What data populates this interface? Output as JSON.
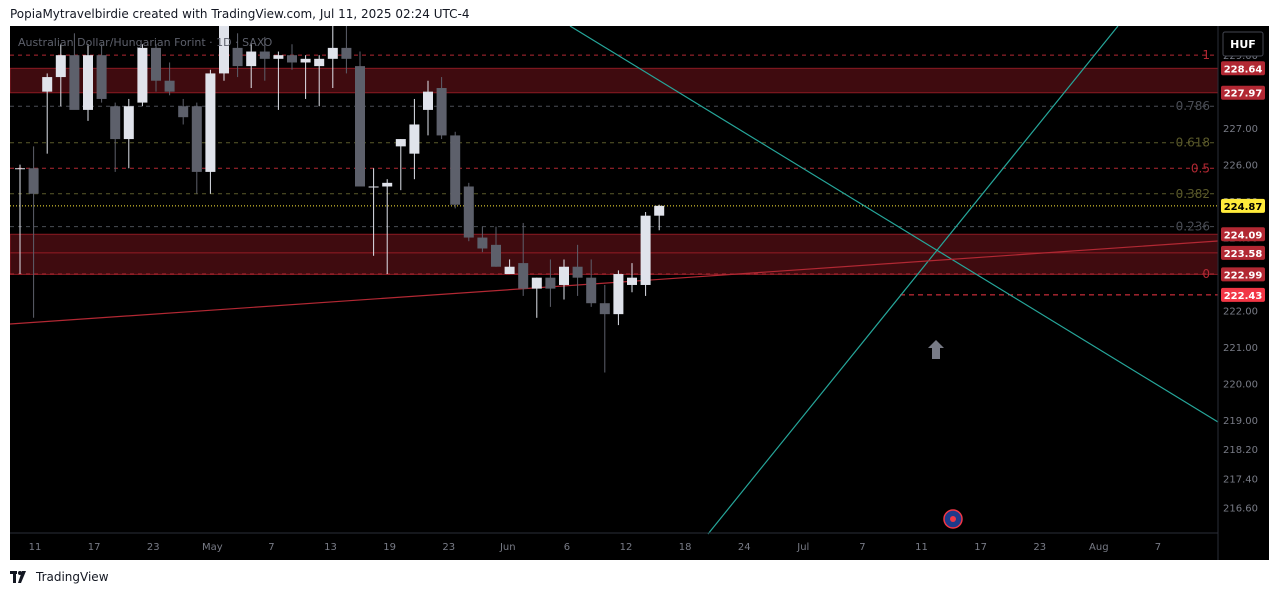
{
  "header": {
    "caption": "PopiaMytravelbirdie created with TradingView.com, Jul 11, 2025 02:24 UTC-4"
  },
  "footer": {
    "brand": "TradingView"
  },
  "symbol": {
    "title": "Australian Dollar/Hungarian Forint · 1D · SAXO"
  },
  "currency_button": {
    "label": "HUF"
  },
  "colors": {
    "background": "#000000",
    "up_candle": "#e0e3eb",
    "down_candle": "#5d606b",
    "zone_fill": "#4a0d12",
    "zone_line": "#8b1a22",
    "trendline_green": "#26a69a",
    "trendline_red": "#b22833",
    "current_price": "#ffeb3b",
    "alert_price": "#f23645",
    "axis_text": "#787b86"
  },
  "chart_data": {
    "type": "candlestick",
    "title": "Australian Dollar/Hungarian Forint · 1D · SAXO",
    "ylim": [
      215.9,
      229.8
    ],
    "y_ticks": [
      "229.00",
      "228.00",
      "227.00",
      "226.00",
      "225.00",
      "224.00",
      "223.00",
      "222.00",
      "221.00",
      "220.00",
      "219.00",
      "218.20",
      "217.40",
      "216.60"
    ],
    "x_labels": [
      "11",
      "17",
      "23",
      "May",
      "7",
      "13",
      "19",
      "23",
      "Jun",
      "6",
      "12",
      "18",
      "24",
      "Jul",
      "7",
      "11",
      "17",
      "23",
      "Aug",
      "7"
    ],
    "candles": [
      {
        "o": 225.9,
        "h": 226.0,
        "l": 223.0,
        "c": 225.9
      },
      {
        "o": 225.9,
        "h": 226.5,
        "l": 221.8,
        "c": 225.2
      },
      {
        "o": 228.0,
        "h": 228.5,
        "l": 226.3,
        "c": 228.4
      },
      {
        "o": 228.4,
        "h": 229.3,
        "l": 227.6,
        "c": 229.0
      },
      {
        "o": 229.0,
        "h": 229.6,
        "l": 227.6,
        "c": 227.5
      },
      {
        "o": 227.5,
        "h": 229.3,
        "l": 227.2,
        "c": 229.0
      },
      {
        "o": 229.0,
        "h": 229.3,
        "l": 227.7,
        "c": 227.8
      },
      {
        "o": 227.6,
        "h": 227.7,
        "l": 225.8,
        "c": 226.7
      },
      {
        "o": 226.7,
        "h": 227.8,
        "l": 225.9,
        "c": 227.6
      },
      {
        "o": 227.7,
        "h": 229.3,
        "l": 227.6,
        "c": 229.2
      },
      {
        "o": 229.2,
        "h": 229.3,
        "l": 228.0,
        "c": 228.3
      },
      {
        "o": 228.3,
        "h": 228.8,
        "l": 227.9,
        "c": 228.0
      },
      {
        "o": 227.6,
        "h": 227.8,
        "l": 227.1,
        "c": 227.3
      },
      {
        "o": 227.6,
        "h": 227.7,
        "l": 225.2,
        "c": 225.8
      },
      {
        "o": 225.8,
        "h": 228.6,
        "l": 225.2,
        "c": 228.5
      },
      {
        "o": 228.5,
        "h": 230.5,
        "l": 228.3,
        "c": 230.5
      }
    ],
    "candles_right": [
      {
        "o": 229.2,
        "h": 229.6,
        "l": 228.4,
        "c": 228.7
      },
      {
        "o": 228.7,
        "h": 229.3,
        "l": 228.1,
        "c": 229.1
      },
      {
        "o": 229.1,
        "h": 229.5,
        "l": 228.3,
        "c": 228.9
      },
      {
        "o": 228.9,
        "h": 229.1,
        "l": 227.5,
        "c": 229.0
      },
      {
        "o": 229.0,
        "h": 229.3,
        "l": 228.6,
        "c": 228.8
      },
      {
        "o": 228.8,
        "h": 229.0,
        "l": 227.8,
        "c": 228.9
      },
      {
        "o": 228.7,
        "h": 229.0,
        "l": 227.6,
        "c": 228.9
      },
      {
        "o": 228.9,
        "h": 229.8,
        "l": 228.1,
        "c": 229.2
      },
      {
        "o": 229.2,
        "h": 229.8,
        "l": 228.5,
        "c": 228.9
      },
      {
        "o": 228.7,
        "h": 229.1,
        "l": 225.9,
        "c": 225.4
      },
      {
        "o": 225.4,
        "h": 225.9,
        "l": 223.5,
        "c": 225.4
      },
      {
        "o": 225.4,
        "h": 225.6,
        "l": 223.0,
        "c": 225.5
      },
      {
        "o": 226.5,
        "h": 226.7,
        "l": 225.3,
        "c": 226.7
      },
      {
        "o": 226.3,
        "h": 227.8,
        "l": 225.6,
        "c": 227.1
      },
      {
        "o": 227.5,
        "h": 228.3,
        "l": 226.8,
        "c": 228.0
      },
      {
        "o": 228.1,
        "h": 228.4,
        "l": 226.7,
        "c": 226.8
      },
      {
        "o": 226.8,
        "h": 226.9,
        "l": 224.8,
        "c": 224.9
      },
      {
        "o": 225.4,
        "h": 225.5,
        "l": 223.9,
        "c": 224.0
      },
      {
        "o": 224.0,
        "h": 224.3,
        "l": 223.6,
        "c": 223.7
      },
      {
        "o": 223.8,
        "h": 224.3,
        "l": 223.2,
        "c": 223.2
      },
      {
        "o": 223.0,
        "h": 223.4,
        "l": 223.1,
        "c": 223.2
      },
      {
        "o": 223.3,
        "h": 224.4,
        "l": 222.4,
        "c": 222.6
      },
      {
        "o": 222.6,
        "h": 222.9,
        "l": 221.8,
        "c": 222.9
      },
      {
        "o": 222.9,
        "h": 223.4,
        "l": 222.1,
        "c": 222.6
      },
      {
        "o": 222.7,
        "h": 223.4,
        "l": 222.3,
        "c": 223.2
      },
      {
        "o": 223.2,
        "h": 223.8,
        "l": 222.4,
        "c": 222.9
      },
      {
        "o": 222.9,
        "h": 223.4,
        "l": 222.1,
        "c": 222.2
      },
      {
        "o": 222.2,
        "h": 222.7,
        "l": 220.3,
        "c": 221.9
      },
      {
        "o": 221.9,
        "h": 223.1,
        "l": 221.6,
        "c": 223.0
      },
      {
        "o": 222.7,
        "h": 223.3,
        "l": 222.5,
        "c": 222.9
      },
      {
        "o": 222.7,
        "h": 224.7,
        "l": 222.4,
        "c": 224.6
      },
      {
        "o": 224.6,
        "h": 224.9,
        "l": 224.2,
        "c": 224.87
      }
    ],
    "price_labels": [
      {
        "value": 228.64,
        "text": "228.64",
        "color": "#b22833"
      },
      {
        "value": 227.97,
        "text": "227.97",
        "color": "#b22833"
      },
      {
        "value": 224.87,
        "text": "224.87",
        "color": "#ffeb3b"
      },
      {
        "value": 224.09,
        "text": "224.09",
        "color": "#b22833"
      },
      {
        "value": 223.58,
        "text": "223.58",
        "color": "#b22833"
      },
      {
        "value": 222.99,
        "text": "222.99",
        "color": "#b22833"
      },
      {
        "value": 222.43,
        "text": "222.43",
        "color": "#f23645"
      }
    ],
    "fib_levels": [
      {
        "ratio": "1",
        "value": 229.0,
        "color": "#b22833"
      },
      {
        "ratio": "0.786",
        "value": 227.6,
        "color": "#4a4d55"
      },
      {
        "ratio": "0.618",
        "value": 226.6,
        "color": "#5b5a2a"
      },
      {
        "ratio": "0.5",
        "value": 225.9,
        "color": "#b22833"
      },
      {
        "ratio": "0.382",
        "value": 225.2,
        "color": "#5b5a2a"
      },
      {
        "ratio": "0.236",
        "value": 224.3,
        "color": "#4a4d55"
      },
      {
        "ratio": "0",
        "value": 223.0,
        "color": "#b22833"
      }
    ],
    "zones": [
      {
        "top": 228.64,
        "bottom": 227.97
      },
      {
        "top": 224.09,
        "bottom": 223.58
      },
      {
        "top": 223.58,
        "bottom": 222.99
      }
    ],
    "alert_line": 222.43,
    "current_price_line": 224.87,
    "grid": false,
    "legend": "top-left"
  }
}
